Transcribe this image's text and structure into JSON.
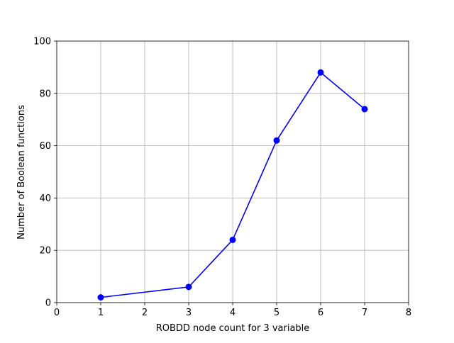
{
  "chart_data": {
    "type": "line",
    "title": "",
    "xlabel": "ROBDD node count for 3 variable",
    "ylabel": "Number of Boolean functions",
    "xlim": [
      0,
      8
    ],
    "ylim": [
      0,
      100
    ],
    "xticks": [
      0,
      1,
      2,
      3,
      4,
      5,
      6,
      7,
      8
    ],
    "yticks": [
      0,
      20,
      40,
      60,
      80,
      100
    ],
    "grid": true,
    "series": [
      {
        "x": [
          1,
          3,
          4,
          5,
          6,
          7
        ],
        "y": [
          2,
          6,
          24,
          62,
          88,
          74
        ],
        "color": "#0000ff",
        "marker": "circle"
      }
    ]
  },
  "colors": {
    "series": "#0000ff",
    "grid": "#b0b0b0",
    "axes": "#000000"
  }
}
